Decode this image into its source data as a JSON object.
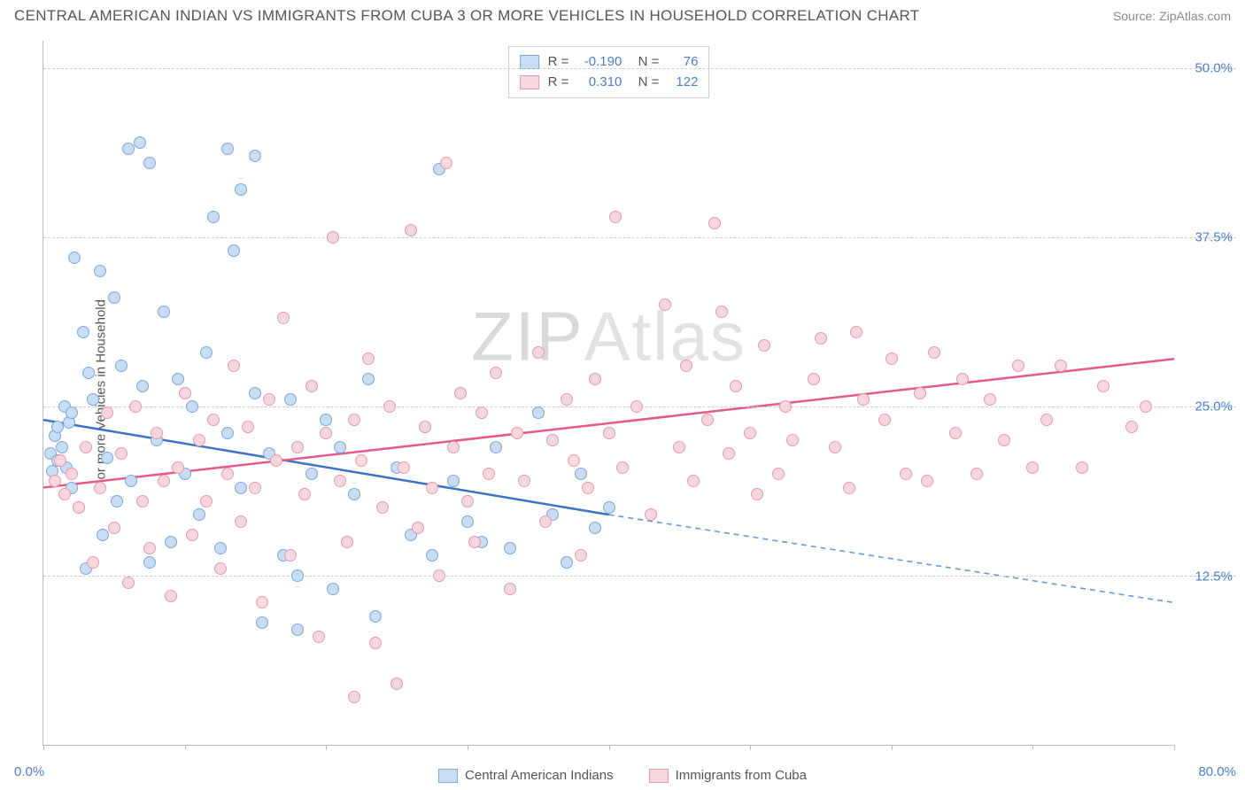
{
  "header": {
    "title": "CENTRAL AMERICAN INDIAN VS IMMIGRANTS FROM CUBA 3 OR MORE VEHICLES IN HOUSEHOLD CORRELATION CHART",
    "source": "Source: ZipAtlas.com"
  },
  "watermark": {
    "bold": "ZIP",
    "light": "Atlas"
  },
  "chart": {
    "type": "scatter",
    "y_axis_label": "3 or more Vehicles in Household",
    "xlim": [
      0,
      80
    ],
    "ylim": [
      0,
      52
    ],
    "x_ticks": [
      0,
      10,
      20,
      30,
      40,
      50,
      60,
      70,
      80
    ],
    "x_tick_labels": {
      "left": "0.0%",
      "right": "80.0%"
    },
    "y_gridlines": [
      12.5,
      25.0,
      37.5,
      50.0
    ],
    "y_tick_labels": [
      "12.5%",
      "25.0%",
      "37.5%",
      "50.0%"
    ],
    "grid_color": "#cccccc",
    "axis_color": "#bbbbbb",
    "tick_label_color": "#4a7ec9",
    "background_color": "#ffffff",
    "marker_radius": 7,
    "series": [
      {
        "key": "central_american_indians",
        "label": "Central American Indians",
        "fill": "#c9ddf4",
        "stroke": "#7aa8da",
        "R": "-0.190",
        "N": "76",
        "trend": {
          "x1": 0,
          "y1": 24.0,
          "x2": 40,
          "y2": 17.0,
          "color": "#3d72c4",
          "width": 2.5
        },
        "trend_dashed": {
          "x1": 40,
          "y1": 17.0,
          "x2": 80,
          "y2": 10.5,
          "color": "#6b96d6",
          "width": 1.6,
          "dash": "6,5"
        },
        "points": [
          [
            0.5,
            21.5
          ],
          [
            0.6,
            20.2
          ],
          [
            0.8,
            22.8
          ],
          [
            1.0,
            23.5
          ],
          [
            1.0,
            21.0
          ],
          [
            1.3,
            22.0
          ],
          [
            1.5,
            25.0
          ],
          [
            1.6,
            20.5
          ],
          [
            1.8,
            23.8
          ],
          [
            2.0,
            24.5
          ],
          [
            2.0,
            19.0
          ],
          [
            2.2,
            36.0
          ],
          [
            2.5,
            17.5
          ],
          [
            2.8,
            30.5
          ],
          [
            3.0,
            13.0
          ],
          [
            3.2,
            27.5
          ],
          [
            3.5,
            25.5
          ],
          [
            4.0,
            35.0
          ],
          [
            4.2,
            15.5
          ],
          [
            4.5,
            21.2
          ],
          [
            5.0,
            33.0
          ],
          [
            5.2,
            18.0
          ],
          [
            5.5,
            28.0
          ],
          [
            6.0,
            44.0
          ],
          [
            6.2,
            19.5
          ],
          [
            6.8,
            44.5
          ],
          [
            7.0,
            26.5
          ],
          [
            7.5,
            13.5
          ],
          [
            8.0,
            22.5
          ],
          [
            8.5,
            32.0
          ],
          [
            9.0,
            15.0
          ],
          [
            9.5,
            27.0
          ],
          [
            7.5,
            43.0
          ],
          [
            10.0,
            20.0
          ],
          [
            10.5,
            25.0
          ],
          [
            11.0,
            17.0
          ],
          [
            11.5,
            29.0
          ],
          [
            12.0,
            39.0
          ],
          [
            12.5,
            14.5
          ],
          [
            13.0,
            23.0
          ],
          [
            13.0,
            44.0
          ],
          [
            13.5,
            36.5
          ],
          [
            14.0,
            19.0
          ],
          [
            14.0,
            41.0
          ],
          [
            15.0,
            26.0
          ],
          [
            15.5,
            9.0
          ],
          [
            16.0,
            21.5
          ],
          [
            17.0,
            14.0
          ],
          [
            17.5,
            25.5
          ],
          [
            18.0,
            12.5
          ],
          [
            18.0,
            8.5
          ],
          [
            19.0,
            20.0
          ],
          [
            15.0,
            43.5
          ],
          [
            20.0,
            24.0
          ],
          [
            20.5,
            11.5
          ],
          [
            21.0,
            22.0
          ],
          [
            22.0,
            18.5
          ],
          [
            23.0,
            27.0
          ],
          [
            23.5,
            9.5
          ],
          [
            25.0,
            20.5
          ],
          [
            26.0,
            15.5
          ],
          [
            27.0,
            23.5
          ],
          [
            27.5,
            14.0
          ],
          [
            28.0,
            42.5
          ],
          [
            29.0,
            19.5
          ],
          [
            30.0,
            16.5
          ],
          [
            31.0,
            15.0
          ],
          [
            32.0,
            22.0
          ],
          [
            33.0,
            14.5
          ],
          [
            35.0,
            24.5
          ],
          [
            36.0,
            17.0
          ],
          [
            37.0,
            13.5
          ],
          [
            38.0,
            20.0
          ],
          [
            39.0,
            16.0
          ],
          [
            40.0,
            17.5
          ]
        ]
      },
      {
        "key": "immigrants_from_cuba",
        "label": "Immigrants from Cuba",
        "fill": "#f7d6de",
        "stroke": "#e69aab",
        "R": "0.310",
        "N": "122",
        "trend": {
          "x1": 0,
          "y1": 19.0,
          "x2": 80,
          "y2": 28.5,
          "color": "#e55a82",
          "width": 2.5
        },
        "points": [
          [
            0.8,
            19.5
          ],
          [
            1.2,
            21.0
          ],
          [
            1.5,
            18.5
          ],
          [
            2.0,
            20.0
          ],
          [
            2.5,
            17.5
          ],
          [
            3.0,
            22.0
          ],
          [
            3.5,
            13.5
          ],
          [
            4.0,
            19.0
          ],
          [
            4.5,
            24.5
          ],
          [
            5.0,
            16.0
          ],
          [
            5.5,
            21.5
          ],
          [
            6.0,
            12.0
          ],
          [
            6.5,
            25.0
          ],
          [
            7.0,
            18.0
          ],
          [
            7.5,
            14.5
          ],
          [
            8.0,
            23.0
          ],
          [
            8.5,
            19.5
          ],
          [
            9.0,
            11.0
          ],
          [
            9.5,
            20.5
          ],
          [
            10.0,
            26.0
          ],
          [
            10.5,
            15.5
          ],
          [
            11.0,
            22.5
          ],
          [
            11.5,
            18.0
          ],
          [
            12.0,
            24.0
          ],
          [
            12.5,
            13.0
          ],
          [
            13.0,
            20.0
          ],
          [
            13.5,
            28.0
          ],
          [
            14.0,
            16.5
          ],
          [
            14.5,
            23.5
          ],
          [
            15.0,
            19.0
          ],
          [
            15.5,
            10.5
          ],
          [
            16.0,
            25.5
          ],
          [
            16.5,
            21.0
          ],
          [
            17.0,
            31.5
          ],
          [
            17.5,
            14.0
          ],
          [
            18.0,
            22.0
          ],
          [
            18.5,
            18.5
          ],
          [
            19.0,
            26.5
          ],
          [
            19.5,
            8.0
          ],
          [
            20.0,
            23.0
          ],
          [
            20.5,
            37.5
          ],
          [
            21.0,
            19.5
          ],
          [
            21.5,
            15.0
          ],
          [
            22.0,
            24.0
          ],
          [
            22.0,
            3.5
          ],
          [
            22.5,
            21.0
          ],
          [
            23.0,
            28.5
          ],
          [
            23.5,
            7.5
          ],
          [
            24.0,
            17.5
          ],
          [
            24.5,
            25.0
          ],
          [
            25.0,
            4.5
          ],
          [
            25.5,
            20.5
          ],
          [
            26.0,
            38.0
          ],
          [
            26.5,
            16.0
          ],
          [
            27.0,
            23.5
          ],
          [
            27.5,
            19.0
          ],
          [
            28.0,
            12.5
          ],
          [
            28.5,
            43.0
          ],
          [
            29.0,
            22.0
          ],
          [
            29.5,
            26.0
          ],
          [
            30.0,
            18.0
          ],
          [
            30.5,
            15.0
          ],
          [
            31.0,
            24.5
          ],
          [
            31.5,
            20.0
          ],
          [
            32.0,
            27.5
          ],
          [
            33.0,
            11.5
          ],
          [
            33.5,
            23.0
          ],
          [
            34.0,
            19.5
          ],
          [
            35.0,
            29.0
          ],
          [
            35.5,
            16.5
          ],
          [
            36.0,
            22.5
          ],
          [
            37.0,
            25.5
          ],
          [
            37.5,
            21.0
          ],
          [
            38.0,
            14.0
          ],
          [
            38.5,
            19.0
          ],
          [
            39.0,
            27.0
          ],
          [
            40.0,
            23.0
          ],
          [
            40.5,
            39.0
          ],
          [
            41.0,
            20.5
          ],
          [
            42.0,
            25.0
          ],
          [
            43.0,
            17.0
          ],
          [
            44.0,
            32.5
          ],
          [
            45.0,
            22.0
          ],
          [
            45.5,
            28.0
          ],
          [
            46.0,
            19.5
          ],
          [
            47.0,
            24.0
          ],
          [
            47.5,
            38.5
          ],
          [
            48.0,
            32.0
          ],
          [
            48.5,
            21.5
          ],
          [
            49.0,
            26.5
          ],
          [
            50.0,
            23.0
          ],
          [
            50.5,
            18.5
          ],
          [
            51.0,
            29.5
          ],
          [
            52.0,
            20.0
          ],
          [
            52.5,
            25.0
          ],
          [
            53.0,
            22.5
          ],
          [
            54.5,
            27.0
          ],
          [
            55.0,
            30.0
          ],
          [
            56.0,
            22.0
          ],
          [
            57.0,
            19.0
          ],
          [
            57.5,
            30.5
          ],
          [
            58.0,
            25.5
          ],
          [
            59.5,
            24.0
          ],
          [
            60.0,
            28.5
          ],
          [
            61.0,
            20.0
          ],
          [
            62.0,
            26.0
          ],
          [
            62.5,
            19.5
          ],
          [
            63.0,
            29.0
          ],
          [
            64.5,
            23.0
          ],
          [
            65.0,
            27.0
          ],
          [
            66.0,
            20.0
          ],
          [
            67.0,
            25.5
          ],
          [
            68.0,
            22.5
          ],
          [
            69.0,
            28.0
          ],
          [
            70.0,
            20.5
          ],
          [
            71.0,
            24.0
          ],
          [
            72.0,
            28.0
          ],
          [
            73.5,
            20.5
          ],
          [
            75.0,
            26.5
          ],
          [
            77.0,
            23.5
          ],
          [
            78.0,
            25.0
          ]
        ]
      }
    ],
    "bottom_legend": [
      {
        "label": "Central American Indians",
        "fill": "#c9ddf4",
        "stroke": "#7aa8da"
      },
      {
        "label": "Immigrants from Cuba",
        "fill": "#f7d6de",
        "stroke": "#e69aab"
      }
    ]
  }
}
